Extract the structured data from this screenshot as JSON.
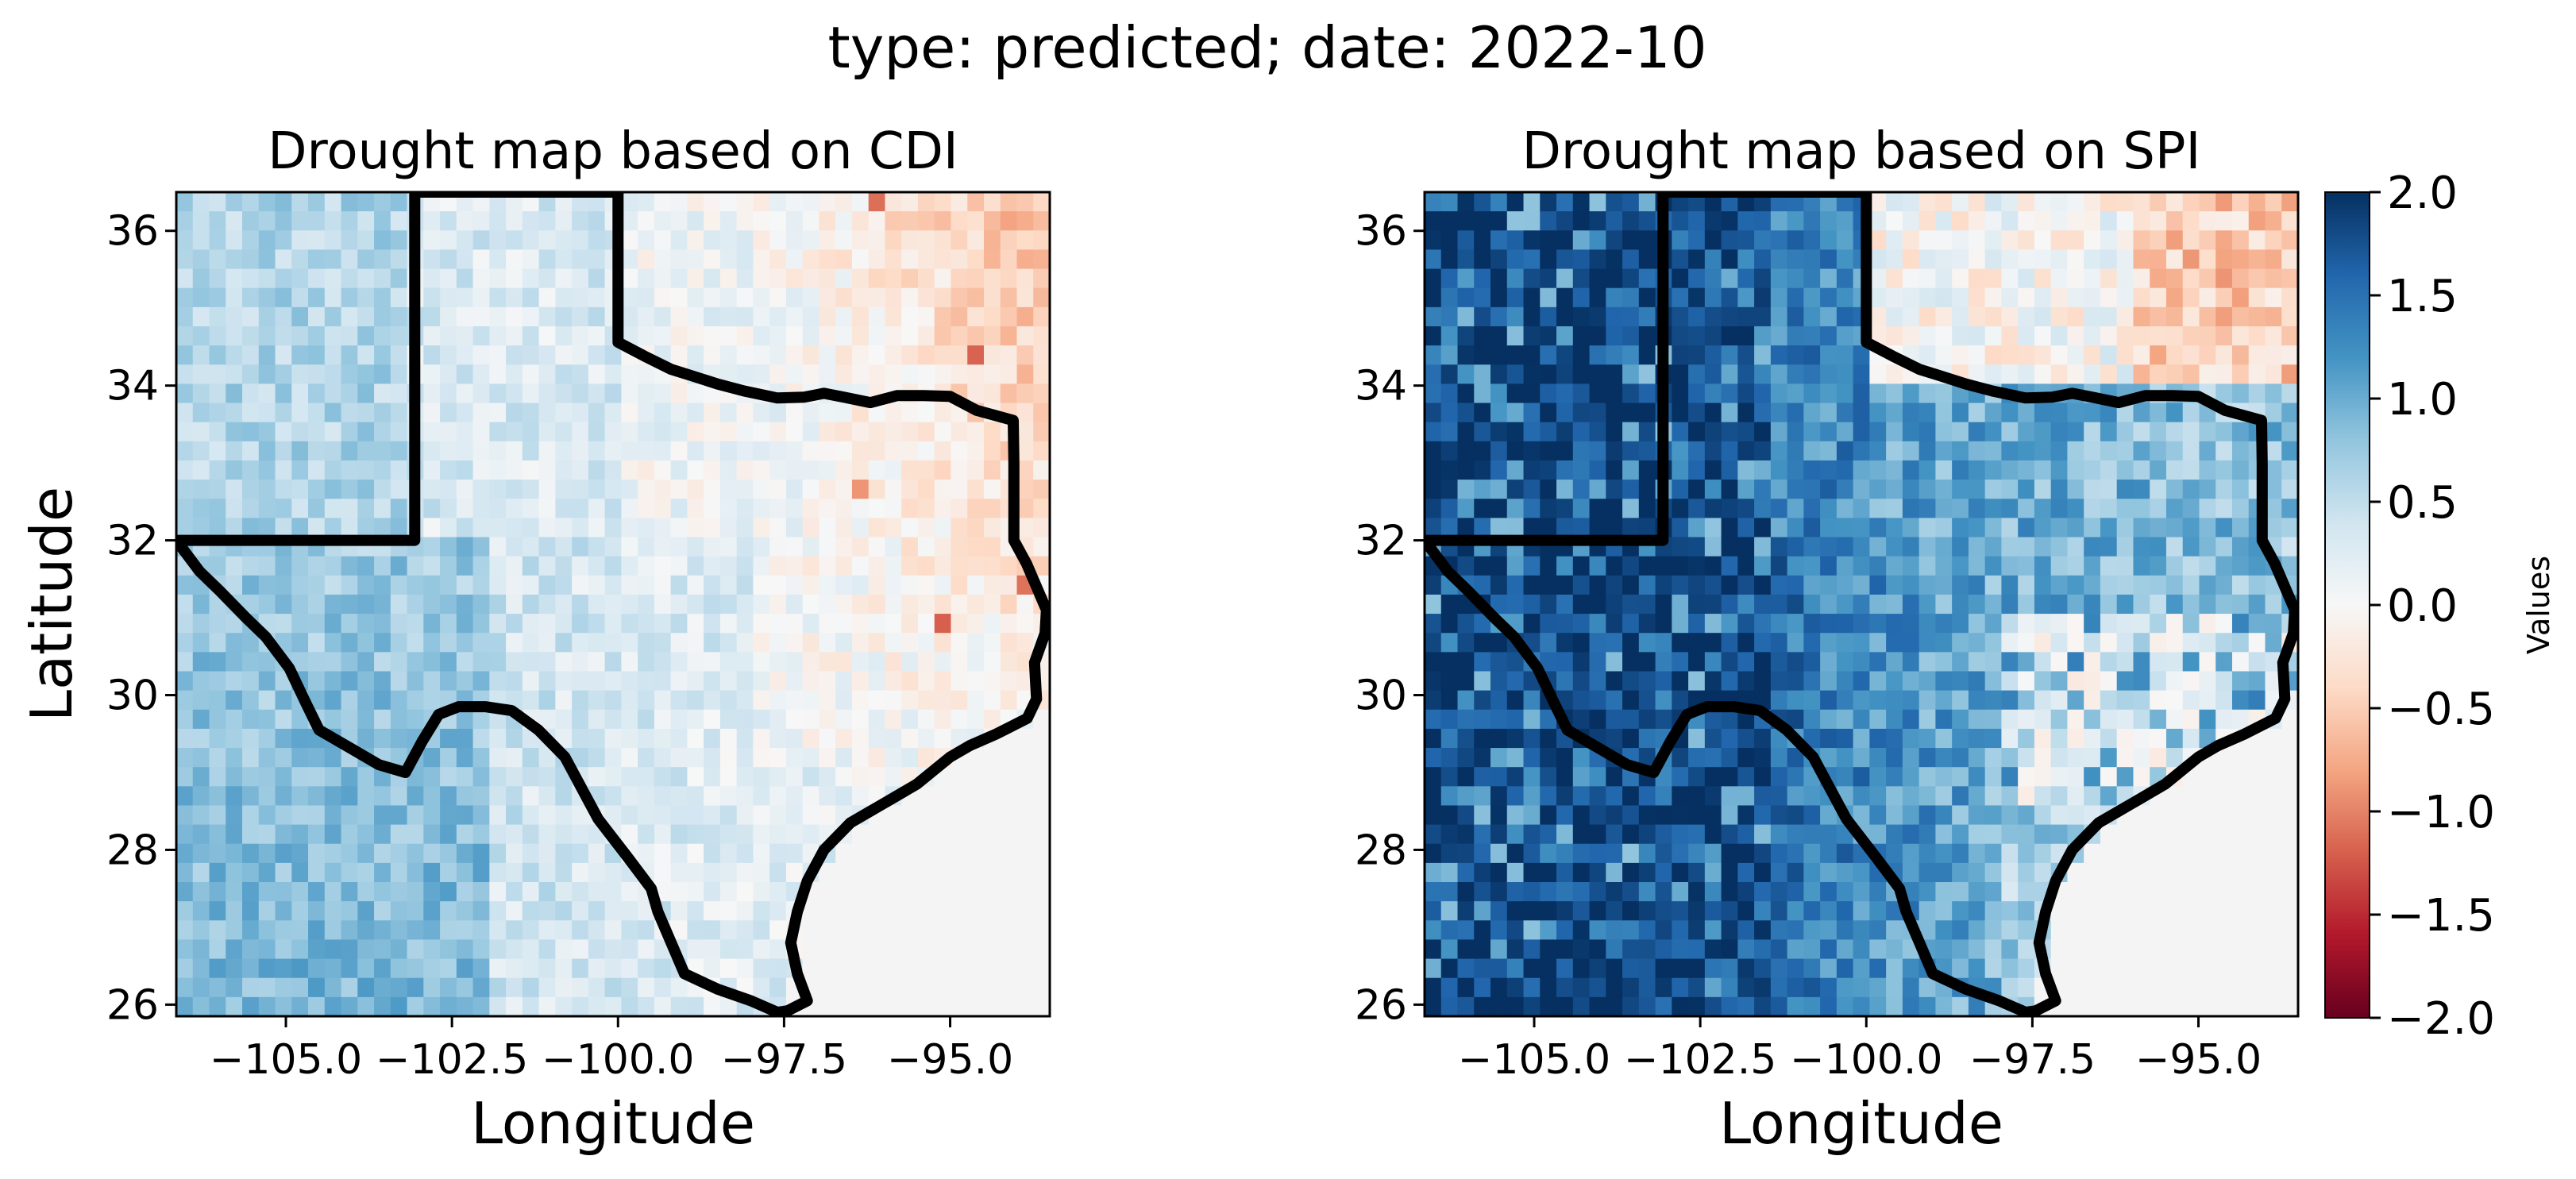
{
  "figure": {
    "suptitle": "type: predicted; date: 2022-10"
  },
  "chart_data": [
    {
      "type": "heatmap",
      "title": "Drought map based on CDI",
      "xlabel": "Longitude",
      "ylabel": "Latitude",
      "xlim": [
        -106.65,
        -93.5
      ],
      "ylim": [
        25.85,
        36.5
      ],
      "x_ticks": [
        -105.0,
        -102.5,
        -100.0,
        -97.5,
        -95.0
      ],
      "x_tick_labels": [
        "−105.0",
        "−102.5",
        "−100.0",
        "−97.5",
        "−95.0"
      ],
      "y_ticks": [
        26,
        28,
        30,
        32,
        34,
        36
      ],
      "y_tick_labels": [
        "26",
        "28",
        "30",
        "32",
        "34",
        "36"
      ],
      "colormap": "RdBu",
      "vmin": -2.0,
      "vmax": 2.0,
      "grid": false,
      "value_field_description_by_region": [
        {
          "lon": [
            -106.65,
            -103.0
          ],
          "lat": [
            32.0,
            36.5
          ],
          "approx_value": 0.6
        },
        {
          "lon": [
            -106.65,
            -102.0
          ],
          "lat": [
            25.85,
            32.0
          ],
          "approx_value": 0.9
        },
        {
          "lon": [
            -103.0,
            -100.0
          ],
          "lat": [
            32.0,
            36.5
          ],
          "approx_value": 0.3
        },
        {
          "lon": [
            -102.0,
            -98.0
          ],
          "lat": [
            25.85,
            32.0
          ],
          "approx_value": 0.35
        },
        {
          "lon": [
            -100.0,
            -96.5
          ],
          "lat": [
            32.0,
            36.5
          ],
          "approx_value": -0.1
        },
        {
          "lon": [
            -96.5,
            -93.5
          ],
          "lat": [
            32.0,
            36.5
          ],
          "approx_value": -0.5
        },
        {
          "lon": [
            -98.0,
            -94.0
          ],
          "lat": [
            29.5,
            32.0
          ],
          "approx_value": -0.25
        },
        {
          "lon": [
            -98.0,
            -96.0
          ],
          "lat": [
            26.0,
            29.5
          ],
          "approx_value": 0.2
        }
      ]
    },
    {
      "type": "heatmap",
      "title": "Drought map based on SPI",
      "xlabel": "Longitude",
      "ylabel": "",
      "xlim": [
        -106.65,
        -93.5
      ],
      "ylim": [
        25.85,
        36.5
      ],
      "x_ticks": [
        -105.0,
        -102.5,
        -100.0,
        -97.5,
        -95.0
      ],
      "x_tick_labels": [
        "−105.0",
        "−102.5",
        "−100.0",
        "−97.5",
        "−95.0"
      ],
      "y_ticks": [
        26,
        28,
        30,
        32,
        34,
        36
      ],
      "y_tick_labels": [
        "26",
        "28",
        "30",
        "32",
        "34",
        "36"
      ],
      "colormap": "RdBu",
      "vmin": -2.0,
      "vmax": 2.0,
      "grid": false,
      "value_field_description_by_region": [
        {
          "lon": [
            -106.65,
            -101.5
          ],
          "lat": [
            25.85,
            36.5
          ],
          "approx_value": 1.9
        },
        {
          "lon": [
            -103.0,
            -100.0
          ],
          "lat": [
            32.0,
            36.5
          ],
          "approx_value": 1.2
        },
        {
          "lon": [
            -101.5,
            -98.0
          ],
          "lat": [
            25.85,
            32.0
          ],
          "approx_value": 1.5
        },
        {
          "lon": [
            -100.0,
            -96.0
          ],
          "lat": [
            34.0,
            36.5
          ],
          "approx_value": 0.0
        },
        {
          "lon": [
            -96.0,
            -93.5
          ],
          "lat": [
            34.0,
            36.5
          ],
          "approx_value": -0.6
        },
        {
          "lon": [
            -100.0,
            -94.0
          ],
          "lat": [
            31.0,
            34.0
          ],
          "approx_value": 1.0
        },
        {
          "lon": [
            -98.0,
            -94.0
          ],
          "lat": [
            28.5,
            31.0
          ],
          "approx_value": 0.2
        },
        {
          "lon": [
            -98.5,
            -96.5
          ],
          "lat": [
            26.0,
            28.5
          ],
          "approx_value": 0.6
        }
      ]
    }
  ],
  "colorbar": {
    "label": "Values",
    "vmin": -2.0,
    "vmax": 2.0,
    "ticks": [
      2.0,
      1.5,
      1.0,
      0.5,
      0.0,
      -0.5,
      -1.0,
      -1.5,
      -2.0
    ],
    "tick_labels": [
      "2.0",
      "1.5",
      "1.0",
      "0.5",
      "0.0",
      "−0.5",
      "−1.0",
      "−1.5",
      "−2.0"
    ]
  },
  "colors": {
    "border": "#000000",
    "nodata": "#f4f4f4"
  }
}
